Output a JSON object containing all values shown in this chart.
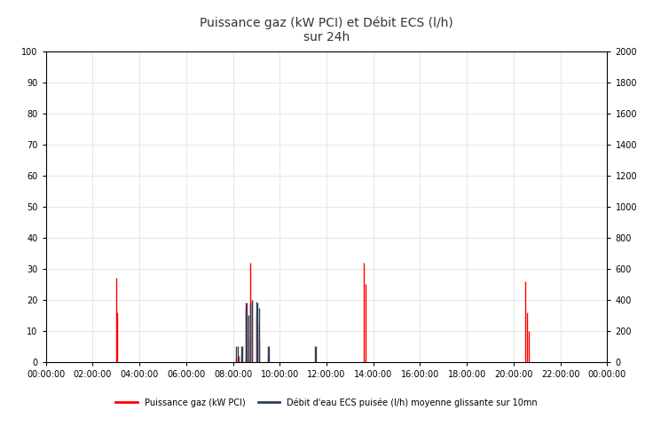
{
  "title": "Puissance gaz (kW PCI) et Débit ECS (l/h)\nsur 24h",
  "left_ylim": [
    0,
    100
  ],
  "right_ylim": [
    0,
    2000
  ],
  "left_yticks": [
    0,
    10,
    20,
    30,
    40,
    50,
    60,
    70,
    80,
    90,
    100
  ],
  "right_yticks": [
    0,
    200,
    400,
    600,
    800,
    1000,
    1200,
    1400,
    1600,
    1800,
    2000
  ],
  "xtick_labels": [
    "00:00:00",
    "02:00:00",
    "04:00:00",
    "06:00:00",
    "08:00:00",
    "10:00:00",
    "12:00:00",
    "14:00:00",
    "16:00:00",
    "18:00:00",
    "20:00:00",
    "22:00:00",
    "00:00:00"
  ],
  "legend_gas": "Puissance gaz (kW PCI)",
  "legend_ecs": "Débit d'eau ECS puisée (l/h) moyenne glissante sur 10mn",
  "gas_color": "#FF0000",
  "ecs_color": "#2E4057",
  "background_color": "#FFFFFF",
  "grid_color": "#DDDDDD",
  "title_fontsize": 10,
  "tick_fontsize": 7,
  "legend_fontsize": 7,
  "gas_data": [
    [
      3.0,
      27.0
    ],
    [
      3.05,
      16.0
    ],
    [
      3.1,
      0.0
    ],
    [
      8.15,
      1.5
    ],
    [
      8.25,
      2.0
    ],
    [
      8.35,
      2.0
    ],
    [
      8.45,
      0.0
    ],
    [
      8.55,
      19.0
    ],
    [
      8.6,
      15.0
    ],
    [
      8.65,
      8.0
    ],
    [
      8.7,
      0.0
    ],
    [
      8.75,
      32.0
    ],
    [
      8.83,
      20.0
    ],
    [
      8.88,
      0.0
    ],
    [
      9.0,
      15.0
    ],
    [
      9.05,
      12.0
    ],
    [
      9.1,
      7.0
    ],
    [
      9.17,
      0.0
    ],
    [
      9.5,
      2.0
    ],
    [
      9.55,
      0.0
    ],
    [
      13.583,
      32.0
    ],
    [
      13.65,
      25.0
    ],
    [
      13.7,
      0.0
    ],
    [
      20.5,
      26.0
    ],
    [
      20.58,
      16.0
    ],
    [
      20.65,
      10.0
    ],
    [
      20.72,
      0.0
    ]
  ],
  "ecs_data": [
    [
      8.15,
      100.0
    ],
    [
      8.2,
      100.0
    ],
    [
      8.25,
      0.0
    ],
    [
      8.35,
      100.0
    ],
    [
      8.4,
      100.0
    ],
    [
      8.45,
      0.0
    ],
    [
      8.55,
      350.0
    ],
    [
      8.6,
      380.0
    ],
    [
      8.65,
      300.0
    ],
    [
      8.7,
      0.0
    ],
    [
      8.75,
      380.0
    ],
    [
      8.83,
      400.0
    ],
    [
      8.88,
      0.0
    ],
    [
      9.0,
      390.0
    ],
    [
      9.05,
      380.0
    ],
    [
      9.1,
      350.0
    ],
    [
      9.17,
      0.0
    ],
    [
      9.5,
      100.0
    ],
    [
      9.55,
      100.0
    ],
    [
      9.6,
      0.0
    ],
    [
      11.5,
      100.0
    ],
    [
      11.55,
      100.0
    ],
    [
      11.6,
      0.0
    ]
  ]
}
